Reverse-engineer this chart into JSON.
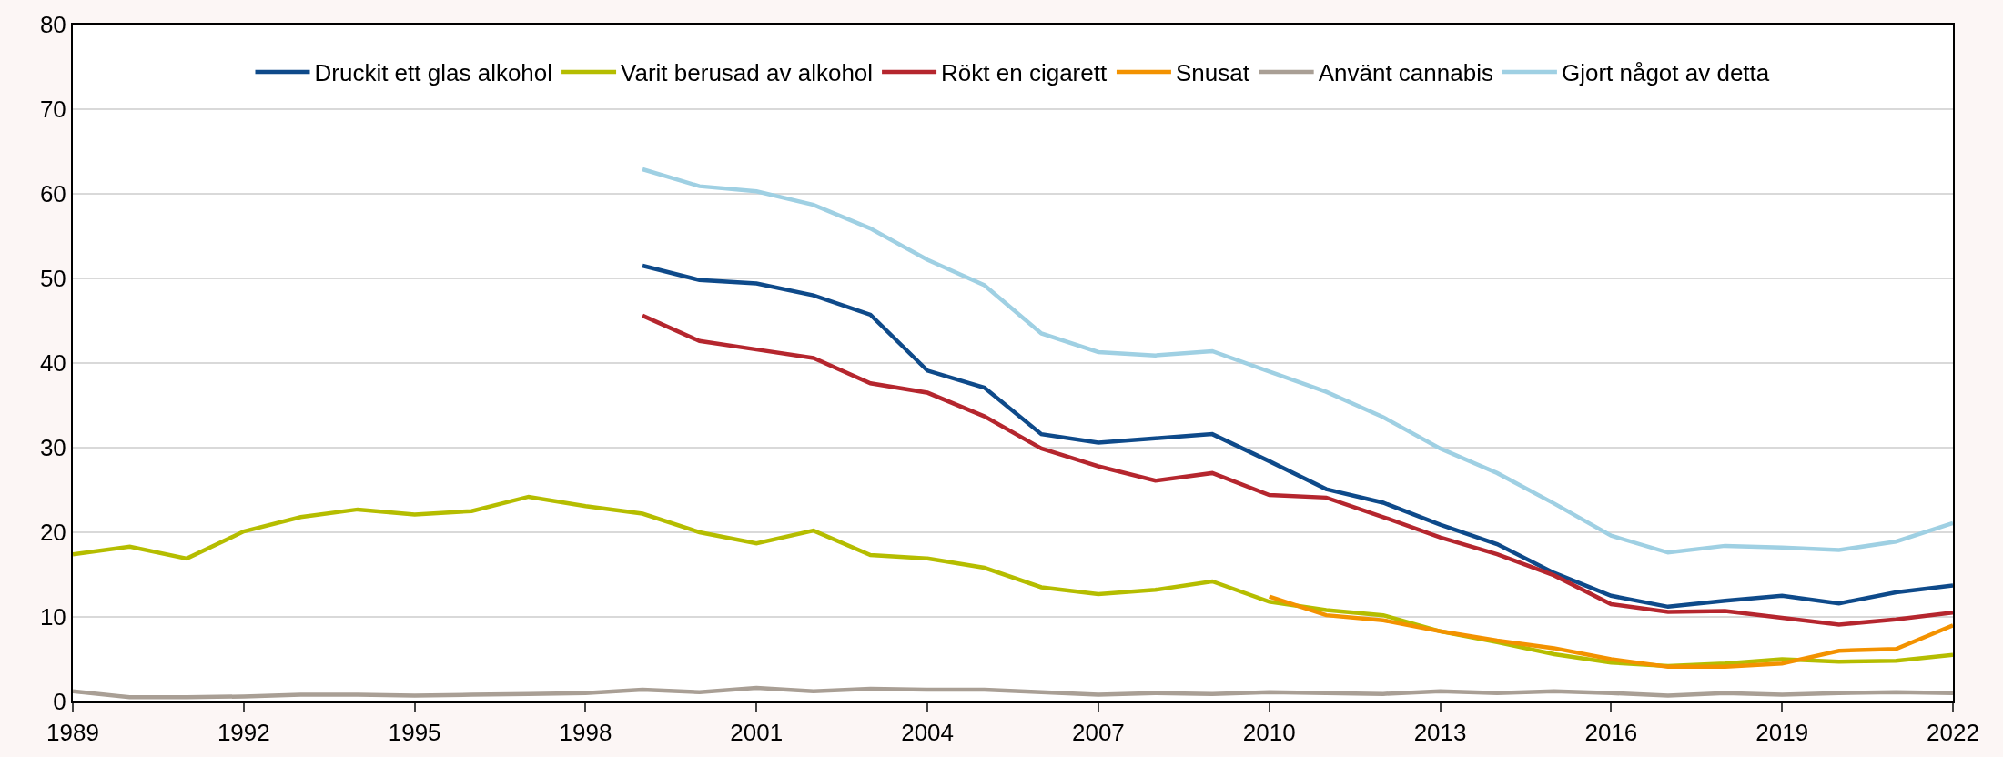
{
  "chart_data": {
    "type": "line",
    "x": [
      1989,
      1990,
      1991,
      1992,
      1993,
      1994,
      1995,
      1996,
      1997,
      1998,
      1999,
      2000,
      2001,
      2002,
      2003,
      2004,
      2005,
      2006,
      2007,
      2008,
      2009,
      2010,
      2011,
      2012,
      2013,
      2014,
      2015,
      2016,
      2017,
      2018,
      2019,
      2020,
      2021,
      2022
    ],
    "series": [
      {
        "name": "Druckit ett glas alkohol",
        "color": "#0e4a8a",
        "values": [
          null,
          null,
          null,
          null,
          null,
          null,
          null,
          null,
          null,
          null,
          51.5,
          49.8,
          49.4,
          48,
          45.7,
          39.1,
          37.1,
          31.6,
          30.6,
          31.1,
          31.6,
          28.4,
          25.1,
          23.5,
          20.9,
          18.6,
          15.2,
          12.5,
          11.2,
          11.9,
          12.5,
          11.6,
          12.9,
          13.7
        ]
      },
      {
        "name": "Varit berusad av alkohol",
        "color": "#b5bd00",
        "values": [
          17.4,
          18.3,
          16.9,
          20.1,
          21.8,
          22.7,
          22.1,
          22.5,
          24.2,
          23.1,
          22.2,
          20,
          18.7,
          20.2,
          17.3,
          16.9,
          15.8,
          13.5,
          12.7,
          13.2,
          14.2,
          11.8,
          10.8,
          10.2,
          8.3,
          7,
          5.6,
          4.6,
          4.2,
          4.5,
          5,
          4.7,
          4.8,
          5.5
        ]
      },
      {
        "name": "Rökt en cigarett",
        "color": "#b5262e",
        "values": [
          null,
          null,
          null,
          null,
          null,
          null,
          null,
          null,
          null,
          null,
          45.6,
          42.6,
          41.6,
          40.6,
          37.6,
          36.5,
          33.7,
          29.9,
          27.8,
          26.1,
          27,
          24.4,
          24.1,
          21.8,
          19.4,
          17.4,
          14.9,
          11.5,
          10.6,
          10.7,
          9.9,
          9.1,
          9.7,
          10.5
        ]
      },
      {
        "name": "Snusat",
        "color": "#f39200",
        "values": [
          null,
          null,
          null,
          null,
          null,
          null,
          null,
          null,
          null,
          null,
          null,
          null,
          null,
          null,
          null,
          null,
          null,
          null,
          null,
          null,
          null,
          12.4,
          10.2,
          9.6,
          8.3,
          7.2,
          6.3,
          5,
          4.1,
          4.1,
          4.5,
          6,
          6.2,
          9
        ]
      },
      {
        "name": "Använt cannabis",
        "color": "#a99f95",
        "values": [
          1.2,
          0.5,
          0.5,
          0.6,
          0.8,
          0.8,
          0.7,
          0.8,
          0.9,
          1,
          1.4,
          1.1,
          1.6,
          1.2,
          1.5,
          1.4,
          1.4,
          1.1,
          0.8,
          1,
          0.9,
          1.1,
          1,
          0.9,
          1.2,
          1,
          1.2,
          1,
          0.7,
          1,
          0.8,
          1,
          1.1,
          1
        ]
      },
      {
        "name": "Gjort något av detta",
        "color": "#9fd0e3",
        "values": [
          null,
          null,
          null,
          null,
          null,
          null,
          null,
          null,
          null,
          null,
          62.9,
          60.9,
          60.3,
          58.7,
          55.9,
          52.2,
          49.2,
          43.5,
          41.3,
          40.9,
          41.4,
          39,
          36.6,
          33.6,
          29.9,
          27,
          23.4,
          19.6,
          17.6,
          18.4,
          18.2,
          17.9,
          18.9,
          21.1
        ]
      }
    ],
    "xlim": [
      1989,
      2022
    ],
    "xticks": [
      1989,
      1992,
      1995,
      1998,
      2001,
      2004,
      2007,
      2010,
      2013,
      2016,
      2019,
      2022
    ],
    "ylim": [
      0,
      80
    ],
    "yticks": [
      0,
      10,
      20,
      30,
      40,
      50,
      60,
      70,
      80
    ],
    "grid": "y",
    "legend": "top",
    "marker": "none",
    "line_style": "solid"
  }
}
